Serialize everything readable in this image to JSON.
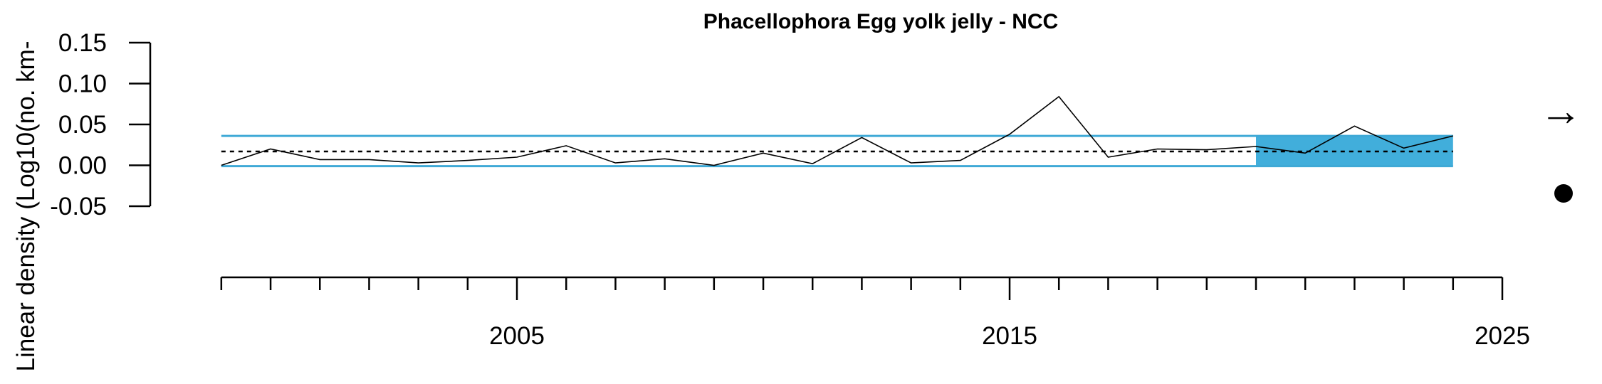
{
  "chart_data": {
    "type": "line",
    "title": "Phacellophora Egg yolk jelly - NCC",
    "ylabel": "Linear density (Log10(no. km-",
    "xlabel": "",
    "xlim": [
      1998.8,
      2025
    ],
    "ylim": [
      -0.05,
      0.15
    ],
    "x_ticks": [
      1999,
      2000,
      2001,
      2002,
      2003,
      2004,
      2005,
      2006,
      2007,
      2008,
      2009,
      2010,
      2011,
      2012,
      2013,
      2014,
      2015,
      2016,
      2017,
      2018,
      2019,
      2020,
      2021,
      2022,
      2023,
      2024,
      2025
    ],
    "x_tick_labels": [
      "2005",
      "2015",
      "2025"
    ],
    "y_ticks": [
      -0.05,
      0.0,
      0.05,
      0.1,
      0.15
    ],
    "y_tick_labels": [
      "-0.05",
      "0.00",
      "0.05",
      "0.10",
      "0.15"
    ],
    "x": [
      1999,
      2000,
      2001,
      2002,
      2003,
      2004,
      2005,
      2006,
      2007,
      2008,
      2009,
      2010,
      2011,
      2012,
      2013,
      2014,
      2015,
      2016,
      2017,
      2018,
      2019,
      2020,
      2021,
      2022,
      2023,
      2024
    ],
    "values": [
      0.0,
      0.02,
      0.007,
      0.007,
      0.003,
      0.006,
      0.01,
      0.024,
      0.003,
      0.008,
      0.0,
      0.015,
      0.002,
      0.034,
      0.003,
      0.006,
      0.038,
      0.084,
      0.01,
      0.02,
      0.019,
      0.023,
      0.015,
      0.048,
      0.021,
      0.036
    ],
    "mean": 0.017,
    "upper_sd": 0.036,
    "lower_sd": -0.001,
    "recent_window": [
      2020,
      2024
    ],
    "trend_symbol": "→",
    "status_symbol": "●",
    "colors": {
      "sd_lines": "#3fa9d6",
      "recent_fill": "#41aedb",
      "series": "#000000"
    },
    "grid": false
  }
}
